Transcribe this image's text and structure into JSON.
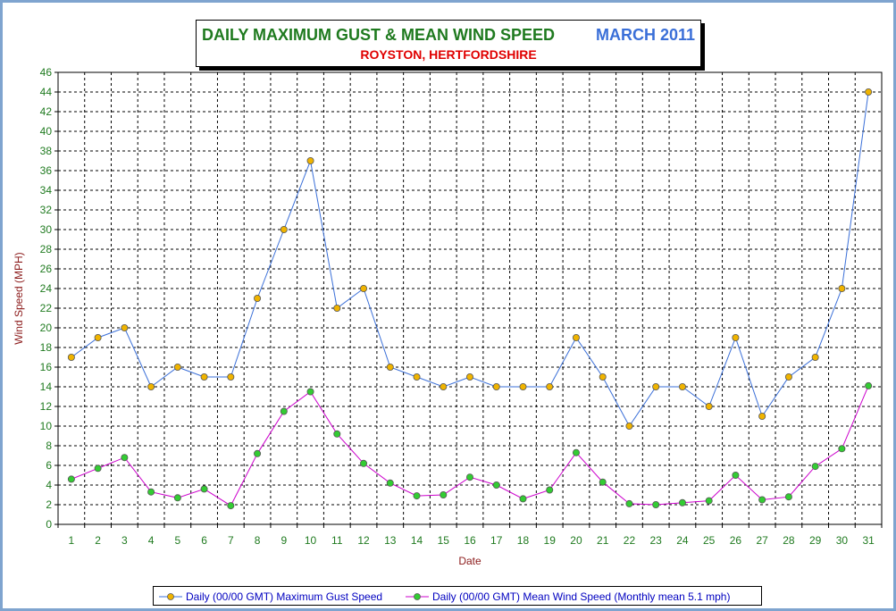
{
  "title": {
    "main": "DAILY MAXIMUM GUST & MEAN WIND SPEED",
    "date": "MARCH 2011",
    "subtitle": "ROYSTON, HERTFORDSHIRE"
  },
  "legend": {
    "gust": "Daily (00/00 GMT) Maximum Gust Speed",
    "mean": "Daily (00/00 GMT) Mean Wind Speed (Monthly mean 5.1 mph)"
  },
  "colors": {
    "gust_line": "#3a6fd8",
    "gust_marker": "#f0b400",
    "mean_line": "#cc00cc",
    "mean_marker": "#33cc33",
    "title_green": "#1f7a1f",
    "title_blue": "#3a6fd8",
    "subtitle_red": "#e00000",
    "frame": "#7fa4cf"
  },
  "chart_data": {
    "type": "line",
    "xlabel": "Date",
    "ylabel": "Wind Speed (MPH)",
    "ylim": [
      0,
      46
    ],
    "ytick_step": 2,
    "grid": true,
    "legend_position": "bottom",
    "x": [
      1,
      2,
      3,
      4,
      5,
      6,
      7,
      8,
      9,
      10,
      11,
      12,
      13,
      14,
      15,
      16,
      17,
      18,
      19,
      20,
      21,
      22,
      23,
      24,
      25,
      26,
      27,
      28,
      29,
      30,
      31
    ],
    "series": [
      {
        "name": "Daily (00/00 GMT) Maximum Gust Speed",
        "values": [
          17,
          19,
          20,
          14,
          16,
          15,
          15,
          23,
          30,
          37,
          22,
          24,
          16,
          15,
          14,
          15,
          14,
          14,
          14,
          19,
          15,
          10,
          14,
          14,
          12,
          19,
          11,
          15,
          17,
          24,
          44
        ]
      },
      {
        "name": "Daily (00/00 GMT) Mean Wind Speed (Monthly mean 5.1 mph)",
        "values": [
          4.6,
          5.7,
          6.8,
          3.3,
          2.7,
          3.6,
          1.9,
          7.2,
          11.5,
          13.5,
          9.2,
          6.2,
          4.2,
          2.9,
          3.0,
          4.8,
          4.0,
          2.6,
          3.5,
          7.3,
          4.3,
          2.1,
          2.0,
          2.2,
          2.4,
          5.0,
          2.5,
          2.8,
          5.9,
          7.7,
          14.1
        ]
      }
    ]
  }
}
